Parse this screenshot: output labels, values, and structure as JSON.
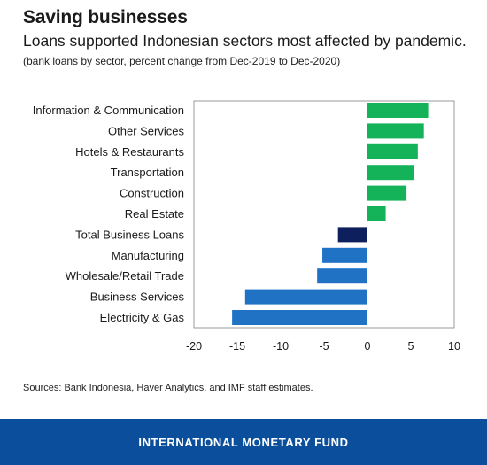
{
  "header": {
    "title": "Saving businesses",
    "subtitle": "Loans supported Indonesian sectors most affected by pandemic.",
    "note": "(bank loans by sector, percent change from Dec-2019 to Dec-2020)"
  },
  "source": "Sources: Bank Indonesia, Haver Analytics, and IMF staff estimates.",
  "footer": {
    "brand": "INTERNATIONAL MONETARY FUND"
  },
  "colors": {
    "positive": "#14b35a",
    "negative": "#1f72c4",
    "total": "#0d1f5c",
    "footer_bg": "#0b4f9c"
  },
  "chart_data": {
    "type": "bar",
    "orientation": "horizontal",
    "categories": [
      "Information & Communication",
      "Other Services",
      "Hotels & Restaurants",
      "Transportation",
      "Construction",
      "Real Estate",
      "Total Business Loans",
      "Manufacturing",
      "Wholesale/Retail Trade",
      "Business Services",
      "Electricity & Gas"
    ],
    "values": [
      7.0,
      6.5,
      5.8,
      5.4,
      4.5,
      2.1,
      -3.4,
      -5.2,
      -5.8,
      -14.1,
      -15.6
    ],
    "xlim": [
      -20,
      10
    ],
    "xticks": [
      "-20",
      "-15",
      "-10",
      "-5",
      "0",
      "5",
      "10"
    ],
    "xtick_values": [
      -20,
      -15,
      -10,
      -5,
      0,
      5,
      10
    ],
    "grid": false,
    "legend": "none"
  }
}
